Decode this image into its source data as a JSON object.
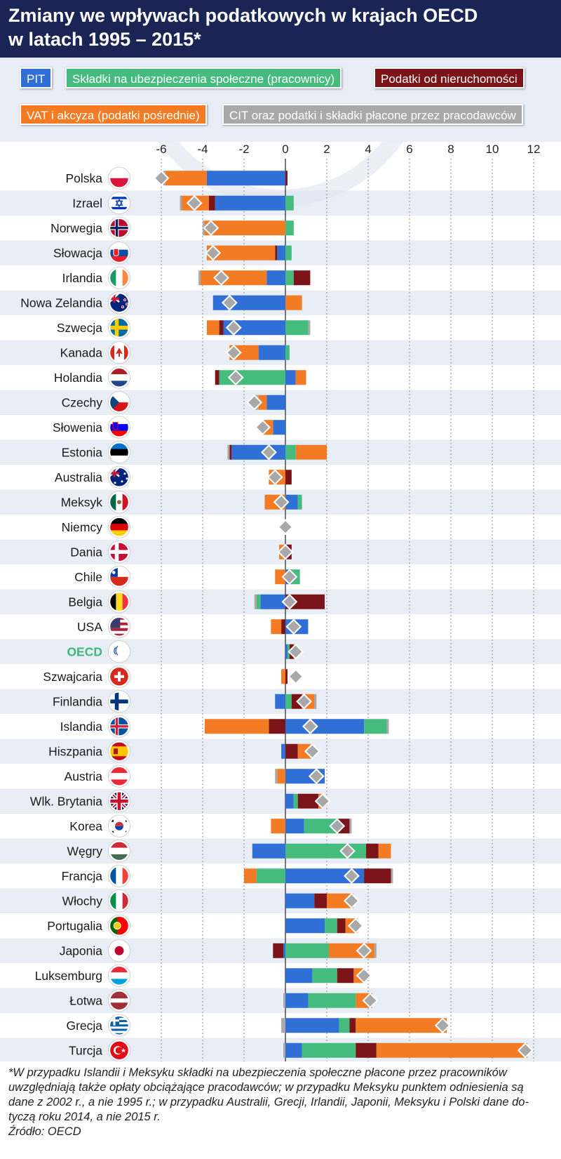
{
  "title": {
    "line1": "Zmiany we wpływach podatkowych w krajach OECD",
    "line2": "w latach 1995 – 2015*"
  },
  "colors": {
    "PIT": "#2f6fd6",
    "SSC": "#45bb7e",
    "PROP": "#7a1418",
    "VAT": "#f27b24",
    "CIT": "#a9a9a9",
    "diamond": "#a8a8a8",
    "oecd_label": "#3cb87a",
    "header_bg": "#1a2556"
  },
  "legend": {
    "pit": "PIT",
    "ssc": "Składki na ubezpieczenia społeczne (pracownicy)",
    "prop": "Podatki od nieruchomości",
    "vat": "VAT i akcyza (podatki pośrednie)",
    "cit": "CIT oraz podatki i składki płacone przez pracodawców"
  },
  "chart_data": {
    "type": "bar",
    "orientation": "horizontal",
    "stacked": "diverging",
    "title": "Zmiany we wpływach podatkowych w krajach OECD w latach 1995 – 2015*",
    "xlim": [
      -6.6,
      12.8
    ],
    "xticks": [
      -6,
      -4,
      -2,
      0,
      2,
      4,
      6,
      8,
      10,
      12
    ],
    "xtick_labels": [
      "-6",
      "-4",
      "-2",
      "0",
      "2",
      "4",
      "6",
      "8",
      "10",
      "12"
    ],
    "grid": true,
    "series_order": [
      "PIT",
      "SSC",
      "PROP",
      "VAT",
      "CIT"
    ],
    "marker": "diamond = total change",
    "rows": [
      {
        "country": "Polska",
        "flag": "pl",
        "total": -6.0,
        "PIT": -3.8,
        "SSC": 0,
        "PROP": 0.1,
        "VAT": -2.0,
        "CIT": -0.1
      },
      {
        "country": "Izrael",
        "flag": "il",
        "total": -4.4,
        "PIT": -3.4,
        "SSC": 0.4,
        "PROP": -0.3,
        "VAT": -1.3,
        "CIT": -0.1
      },
      {
        "country": "Norwegia",
        "flag": "no",
        "total": -3.6,
        "PIT": 0,
        "SSC": 0.4,
        "PROP": 0,
        "VAT": -3.9,
        "CIT": -0.1
      },
      {
        "country": "Słowacja",
        "flag": "sk",
        "total": -3.5,
        "PIT": -0.4,
        "SSC": 0.3,
        "PROP": -0.1,
        "VAT": -3.3,
        "CIT": 0
      },
      {
        "country": "Irlandia",
        "flag": "ie",
        "total": -3.1,
        "PIT": -0.9,
        "SSC": 0.4,
        "PROP": 0.8,
        "VAT": -3.2,
        "CIT": -0.1
      },
      {
        "country": "Nowa Zelandia",
        "flag": "nz",
        "total": -2.7,
        "PIT": -3.5,
        "SSC": 0,
        "PROP": 0,
        "VAT": 0.8,
        "CIT": 0
      },
      {
        "country": "Szwecja",
        "flag": "se",
        "total": -2.5,
        "PIT": -3.0,
        "SSC": 1.1,
        "PROP": -0.2,
        "VAT": -0.6,
        "CIT": 0.1
      },
      {
        "country": "Kanada",
        "flag": "ca",
        "total": -2.5,
        "PIT": -1.3,
        "SSC": 0.2,
        "PROP": 0,
        "VAT": -1.4,
        "CIT": 0
      },
      {
        "country": "Holandia",
        "flag": "nl",
        "total": -2.4,
        "PIT": 0.5,
        "SSC": -3.2,
        "PROP": -0.2,
        "VAT": 0.5,
        "CIT": 0
      },
      {
        "country": "Czechy",
        "flag": "cz",
        "total": -1.5,
        "PIT": -0.9,
        "SSC": 0,
        "PROP": 0,
        "VAT": -0.4,
        "CIT": -0.2
      },
      {
        "country": "Słowenia",
        "flag": "si",
        "total": -1.1,
        "PIT": -0.6,
        "SSC": 0,
        "PROP": 0,
        "VAT": -0.5,
        "CIT": 0
      },
      {
        "country": "Estonia",
        "flag": "ee",
        "total": -0.8,
        "PIT": -2.6,
        "SSC": 0.5,
        "PROP": -0.1,
        "VAT": 1.5,
        "CIT": -0.1
      },
      {
        "country": "Australia",
        "flag": "au",
        "total": -0.5,
        "PIT": 0,
        "SSC": 0,
        "PROP": 0.3,
        "VAT": -0.8,
        "CIT": 0
      },
      {
        "country": "Meksyk",
        "flag": "mx",
        "total": -0.2,
        "PIT": 0.6,
        "SSC": 0.2,
        "PROP": 0,
        "VAT": -1.0,
        "CIT": 0
      },
      {
        "country": "Niemcy",
        "flag": "de",
        "total": 0.0,
        "PIT": 0,
        "SSC": 0,
        "PROP": 0,
        "VAT": 0,
        "CIT": 0
      },
      {
        "country": "Dania",
        "flag": "dk",
        "total": 0.0,
        "PIT": 0,
        "SSC": 0,
        "PROP": 0.3,
        "VAT": -0.3,
        "CIT": 0
      },
      {
        "country": "Chile",
        "flag": "cl",
        "total": 0.2,
        "PIT": 0.3,
        "SSC": 0.4,
        "PROP": 0,
        "VAT": -0.5,
        "CIT": 0
      },
      {
        "country": "Belgia",
        "flag": "be",
        "total": 0.2,
        "PIT": -1.2,
        "SSC": -0.2,
        "PROP": 1.9,
        "VAT": 0,
        "CIT": -0.1
      },
      {
        "country": "USA",
        "flag": "us",
        "total": 0.4,
        "PIT": 1.1,
        "SSC": 0,
        "PROP": -0.2,
        "VAT": -0.5,
        "CIT": 0
      },
      {
        "country": "OECD",
        "flag": "oecd",
        "total": 0.5,
        "PIT": 0.1,
        "SSC": 0.1,
        "PROP": 0.2,
        "VAT": 0.1,
        "CIT": 0
      },
      {
        "country": "Szwajcaria",
        "flag": "ch",
        "total": 0.5,
        "PIT": 0,
        "SSC": 0,
        "PROP": 0.1,
        "VAT": -0.2,
        "CIT": 0
      },
      {
        "country": "Finlandia",
        "flag": "fi",
        "total": 0.9,
        "PIT": -0.5,
        "SSC": 0.3,
        "PROP": 0.5,
        "VAT": 0.6,
        "CIT": 0.1
      },
      {
        "country": "Islandia",
        "flag": "is",
        "total": 1.2,
        "PIT": 3.8,
        "SSC": 1.1,
        "PROP": -0.8,
        "VAT": -3.1,
        "CIT": 0.1
      },
      {
        "country": "Hiszpania",
        "flag": "es",
        "total": 1.3,
        "PIT": -0.2,
        "SSC": 0,
        "PROP": 0.6,
        "VAT": 0.6,
        "CIT": 0.1
      },
      {
        "country": "Austria",
        "flag": "at",
        "total": 1.5,
        "PIT": 1.9,
        "SSC": 0,
        "PROP": 0,
        "VAT": -0.4,
        "CIT": -0.1
      },
      {
        "country": "Wlk. Brytania",
        "flag": "gb",
        "total": 1.8,
        "PIT": 0.4,
        "SSC": 0.2,
        "PROP": 1.0,
        "VAT": 0.2,
        "CIT": 0
      },
      {
        "country": "Korea",
        "flag": "kr",
        "total": 2.5,
        "PIT": 0.9,
        "SSC": 1.6,
        "PROP": 0.6,
        "VAT": -0.7,
        "CIT": 0.1
      },
      {
        "country": "Węgry",
        "flag": "hu",
        "total": 3.0,
        "PIT": -1.6,
        "SSC": 3.9,
        "PROP": 0.6,
        "VAT": 0.6,
        "CIT": 0
      },
      {
        "country": "Francja",
        "flag": "fr",
        "total": 3.2,
        "PIT": 3.8,
        "SSC": -1.4,
        "PROP": 1.3,
        "VAT": -0.6,
        "CIT": 0.1
      },
      {
        "country": "Włochy",
        "flag": "it",
        "total": 3.2,
        "PIT": 1.4,
        "SSC": 0,
        "PROP": 0.6,
        "VAT": 1.2,
        "CIT": 0.1
      },
      {
        "country": "Portugalia",
        "flag": "pt",
        "total": 3.4,
        "PIT": 1.9,
        "SSC": 0.6,
        "PROP": 0.4,
        "VAT": 0.5,
        "CIT": 0.1
      },
      {
        "country": "Japonia",
        "flag": "jp",
        "total": 3.8,
        "PIT": -0.1,
        "SSC": 2.1,
        "PROP": -0.5,
        "VAT": 2.2,
        "CIT": 0.1
      },
      {
        "country": "Luksemburg",
        "flag": "lu",
        "total": 3.8,
        "PIT": 1.3,
        "SSC": 1.2,
        "PROP": 0.8,
        "VAT": 0.5,
        "CIT": 0
      },
      {
        "country": "Łotwa",
        "flag": "lv",
        "total": 4.1,
        "PIT": 1.1,
        "SSC": 2.3,
        "PROP": 0,
        "VAT": 0.8,
        "CIT": -0.1
      },
      {
        "country": "Grecja",
        "flag": "gr",
        "total": 7.6,
        "PIT": 2.6,
        "SSC": 0.5,
        "PROP": 0.3,
        "VAT": 4.4,
        "CIT": -0.2
      },
      {
        "country": "Turcja",
        "flag": "tr",
        "total": 11.6,
        "PIT": 0.8,
        "SSC": 2.6,
        "PROP": 1.0,
        "VAT": 7.3,
        "CIT": -0.1
      }
    ]
  },
  "footnote": {
    "line1": "*W przypadku Islandii i Meksyku składki na ubezpieczenia społeczne płacone przez pracowników",
    "line2": "uwzględniają także opłaty obciążające pracodawców; w przypadku Meksyku punktem odniesienia są",
    "line3": "dane z 2002 r., a nie 1995 r.; w przypadku Australii, Grecji, Irlandii, Japonii, Meksyku i Polski dane do-",
    "line4": "tyczą roku 2014, a nie 2015 r.",
    "source": "Źródło: OECD"
  }
}
